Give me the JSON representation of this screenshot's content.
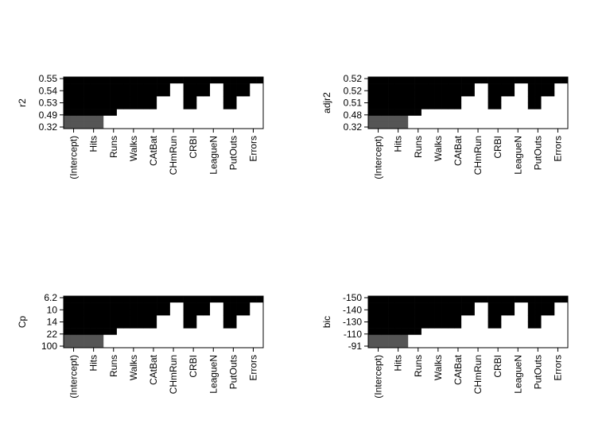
{
  "chart_data": [
    {
      "type": "heatmap",
      "ylabel": "r2",
      "x": [
        "(Intercept)",
        "Hits",
        "Runs",
        "Walks",
        "CAtBat",
        "CHmRun",
        "CRBI",
        "LeagueN",
        "PutOuts",
        "Errors"
      ],
      "yticks": [
        "0.32",
        "0.49",
        "0.53",
        "0.54",
        "0.55"
      ],
      "fill_from_top": [
        8,
        8,
        8,
        8,
        8,
        8,
        6,
        6,
        5,
        5,
        5,
        5,
        5,
        5,
        3,
        3,
        1,
        1,
        5,
        5,
        3,
        3,
        1,
        1,
        5,
        5,
        3,
        3,
        1,
        1
      ],
      "color": "#000000"
    },
    {
      "type": "heatmap",
      "ylabel": "adjr2",
      "x": [
        "(Intercept)",
        "Hits",
        "Runs",
        "Walks",
        "CAtBat",
        "CHmRun",
        "CRBI",
        "LeagueN",
        "PutOuts",
        "Errors"
      ],
      "yticks": [
        "0.32",
        "0.48",
        "0.51",
        "0.52",
        "0.52"
      ],
      "fill_from_top": [
        8,
        8,
        8,
        8,
        8,
        8,
        6,
        6,
        5,
        5,
        5,
        5,
        5,
        5,
        3,
        3,
        1,
        1,
        5,
        5,
        3,
        3,
        1,
        1,
        5,
        5,
        3,
        3,
        1,
        1
      ],
      "color": "#000000"
    },
    {
      "type": "heatmap",
      "ylabel": "Cp",
      "x": [
        "(Intercept)",
        "Hits",
        "Runs",
        "Walks",
        "CAtBat",
        "CHmRun",
        "CRBI",
        "LeagueN",
        "PutOuts",
        "Errors"
      ],
      "yticks": [
        "100",
        "22",
        "14",
        "10",
        "6.2"
      ],
      "fill_from_top": [
        8,
        8,
        8,
        8,
        8,
        8,
        6,
        6,
        5,
        5,
        5,
        5,
        5,
        5,
        3,
        3,
        1,
        1,
        5,
        5,
        3,
        3,
        1,
        1,
        5,
        5,
        3,
        3,
        1,
        1
      ],
      "color": "#000000"
    },
    {
      "type": "heatmap",
      "ylabel": "bic",
      "x": [
        "(Intercept)",
        "Hits",
        "Runs",
        "Walks",
        "CAtBat",
        "CHmRun",
        "CRBI",
        "LeagueN",
        "PutOuts",
        "Errors"
      ],
      "yticks": [
        "-91",
        "-110",
        "-130",
        "-140",
        "-150"
      ],
      "fill_from_top": [
        8,
        8,
        8,
        8,
        8,
        8,
        6,
        6,
        5,
        5,
        5,
        5,
        5,
        5,
        3,
        3,
        1,
        1,
        5,
        5,
        3,
        3,
        1,
        1,
        5,
        5,
        3,
        3,
        1,
        1
      ],
      "color": "#000000"
    }
  ]
}
